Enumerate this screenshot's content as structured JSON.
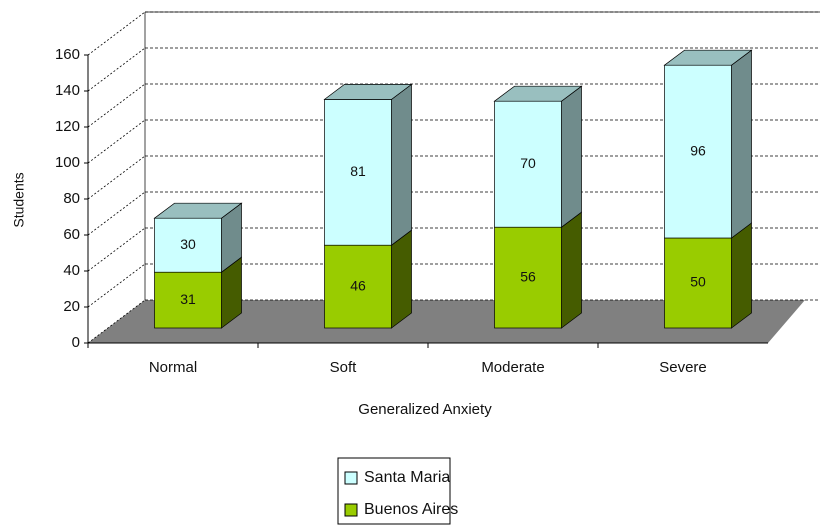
{
  "chart_data": {
    "type": "bar3d_stacked",
    "x_label": "Generalized Anxiety",
    "y_label": "Students",
    "categories": [
      "Normal",
      "Soft",
      "Moderate",
      "Severe"
    ],
    "series": [
      {
        "name": "Buenos Aires",
        "color": "#99cc00",
        "values": [
          31,
          46,
          56,
          50
        ]
      },
      {
        "name": "Santa Maria",
        "color": "#ccffff",
        "values": [
          30,
          81,
          70,
          96
        ]
      }
    ],
    "ylim": [
      0,
      160
    ],
    "yticks": [
      0,
      20,
      40,
      60,
      80,
      100,
      120,
      140,
      160
    ],
    "grid": true,
    "legend": "bottom"
  }
}
